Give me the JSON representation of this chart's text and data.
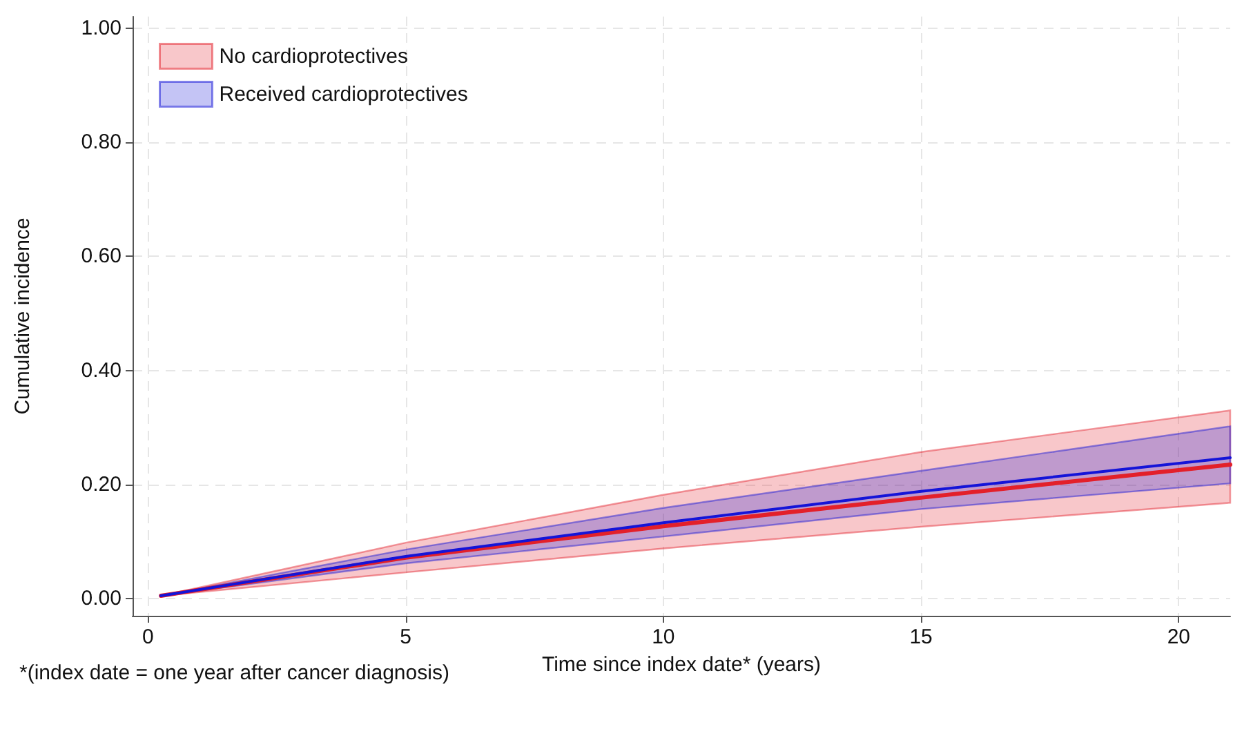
{
  "chart_data": {
    "type": "line",
    "xlabel": "Time since index date* (years)",
    "ylabel": "Cumulative incidence",
    "annotations": [
      "*(index date = one year after cancer diagnosis)"
    ],
    "x": [
      0.25,
      5,
      10,
      15,
      21
    ],
    "series": [
      {
        "name": "No cardioprotectives",
        "color": "#e3202a",
        "values": [
          0.005,
          0.072,
          0.127,
          0.177,
          0.235
        ],
        "lower": [
          0.005,
          0.046,
          0.088,
          0.126,
          0.168
        ],
        "upper": [
          0.005,
          0.098,
          0.182,
          0.257,
          0.33
        ]
      },
      {
        "name": "Received cardioprotectives",
        "color": "#1414d8",
        "values": [
          0.005,
          0.074,
          0.133,
          0.188,
          0.247
        ],
        "lower": [
          0.005,
          0.062,
          0.109,
          0.157,
          0.202
        ],
        "upper": [
          0.005,
          0.086,
          0.159,
          0.224,
          0.302
        ]
      }
    ],
    "xlim": [
      -0.3,
      21
    ],
    "ylim": [
      -0.03,
      1.02
    ],
    "xticks": [
      0,
      5,
      10,
      15,
      20
    ],
    "yticks": [
      {
        "value": 0,
        "label": "0.00"
      },
      {
        "value": 0.2,
        "label": "0.20"
      },
      {
        "value": 0.4,
        "label": "0.40"
      },
      {
        "value": 0.6,
        "label": "0.60"
      },
      {
        "value": 0.8,
        "label": "0.80"
      },
      {
        "value": 1,
        "label": "1.00"
      }
    ],
    "grid": true,
    "legend": "top left",
    "marker": "none",
    "line_style": "solid"
  }
}
